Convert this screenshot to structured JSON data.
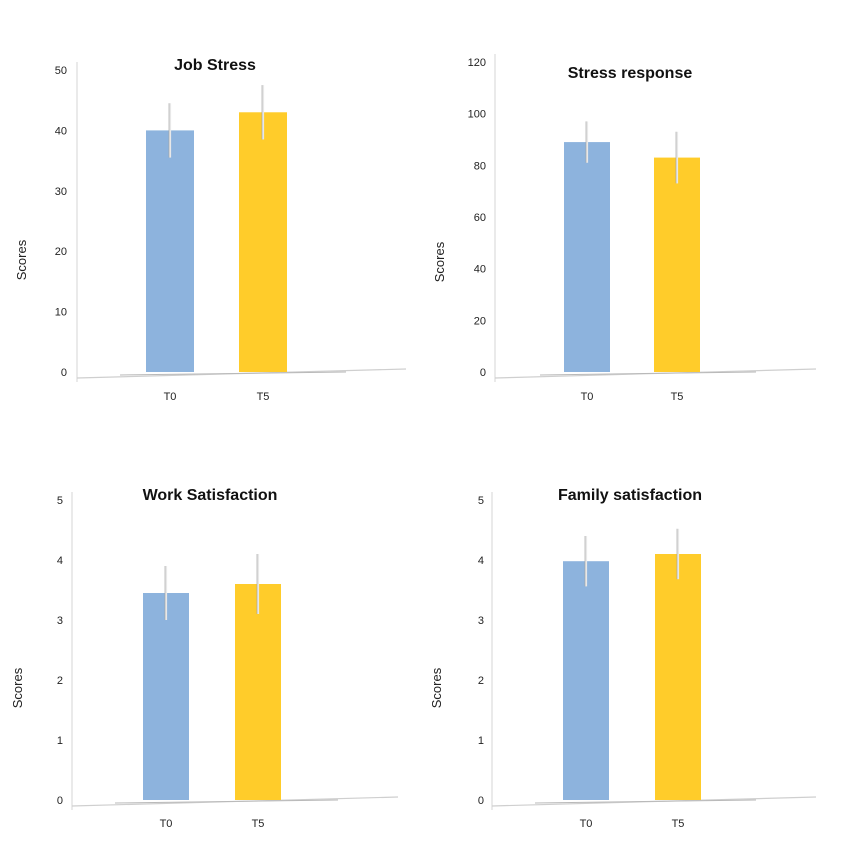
{
  "chart_data": [
    {
      "type": "bar",
      "title": "Job Stress",
      "ylabel": "Scores",
      "xlabel": "",
      "categories": [
        "T0",
        "T5"
      ],
      "values": [
        40,
        43
      ],
      "error": [
        4.5,
        4.5
      ],
      "ylim": [
        0,
        50
      ],
      "yticks": [
        0,
        10,
        20,
        30,
        40,
        50
      ],
      "colors": [
        "#8db3dd",
        "#ffcc2a"
      ]
    },
    {
      "type": "bar",
      "title": "Stress response",
      "ylabel": "Scores",
      "xlabel": "",
      "categories": [
        "T0",
        "T5"
      ],
      "values": [
        89,
        83
      ],
      "error": [
        8,
        10
      ],
      "ylim": [
        0,
        120
      ],
      "yticks": [
        0,
        20,
        40,
        60,
        80,
        100,
        120
      ],
      "colors": [
        "#8db3dd",
        "#ffcc2a"
      ]
    },
    {
      "type": "bar",
      "title": "Work Satisfaction",
      "ylabel": "Scores",
      "xlabel": "",
      "categories": [
        "T0",
        "T5"
      ],
      "values": [
        3.45,
        3.6
      ],
      "error": [
        0.45,
        0.5
      ],
      "ylim": [
        0,
        5
      ],
      "yticks": [
        0,
        1,
        2,
        3,
        4,
        5
      ],
      "colors": [
        "#8db3dd",
        "#ffcc2a"
      ]
    },
    {
      "type": "bar",
      "title": "Family satisfaction",
      "ylabel": "Scores",
      "xlabel": "",
      "categories": [
        "T0",
        "T5"
      ],
      "values": [
        3.98,
        4.1
      ],
      "error": [
        0.42,
        0.42
      ],
      "ylim": [
        0,
        5
      ],
      "yticks": [
        0,
        1,
        2,
        3,
        4,
        5
      ],
      "colors": [
        "#8db3dd",
        "#ffcc2a"
      ]
    }
  ]
}
